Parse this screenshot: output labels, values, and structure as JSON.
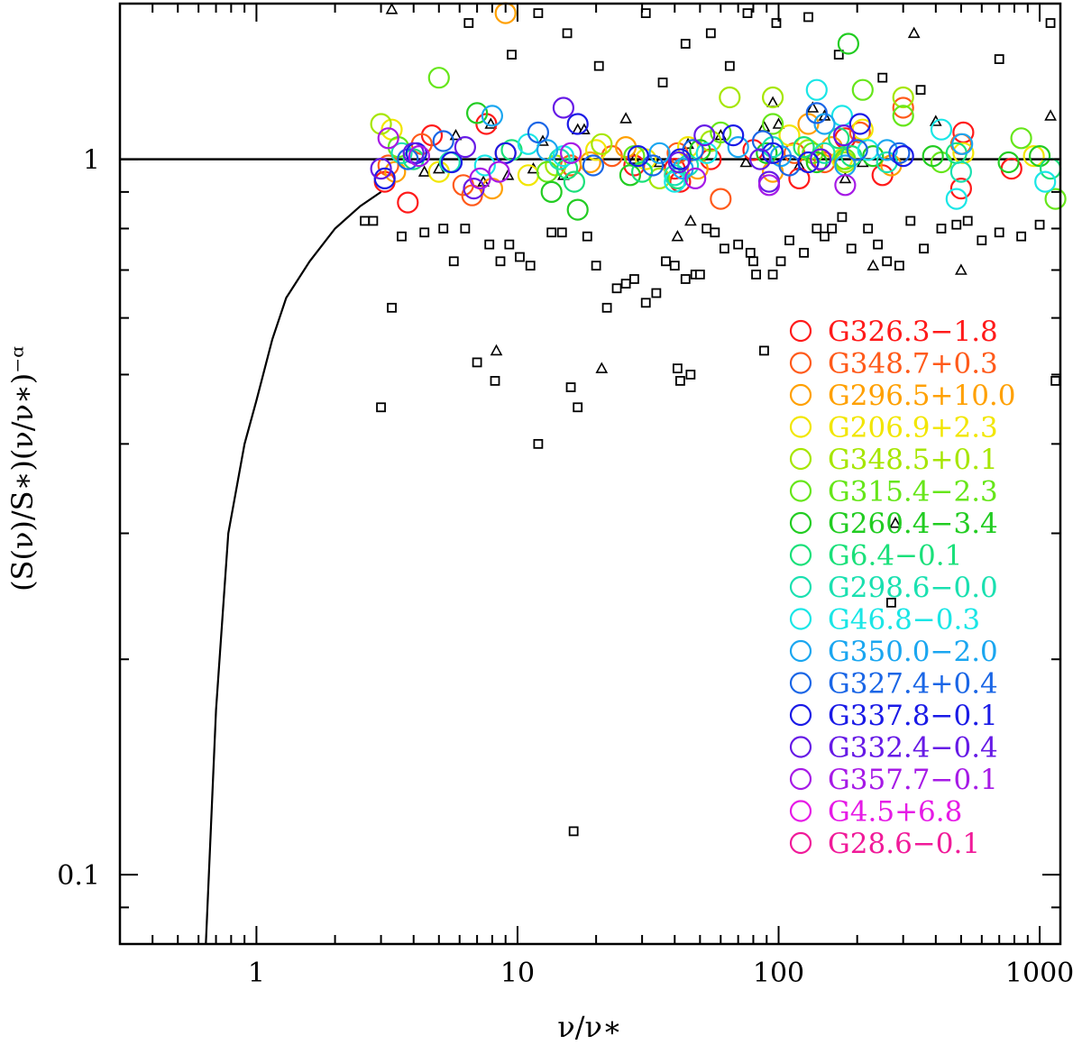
{
  "chart_data": {
    "type": "scatter",
    "xscale": "log",
    "yscale": "log",
    "xlim": [
      0.3,
      1200
    ],
    "ylim": [
      0.08,
      1.65
    ],
    "xlabel": "ν/ν∗",
    "ylabel": "(S(ν)/S∗)(ν/ν∗)⁻ᵅ",
    "xticks": [
      {
        "value": 1,
        "label": "1"
      },
      {
        "value": 10,
        "label": "10"
      },
      {
        "value": 100,
        "label": "100"
      },
      {
        "value": 1000,
        "label": "1000"
      }
    ],
    "yticks": [
      {
        "value": 0.1,
        "label": "0.1"
      },
      {
        "value": 1,
        "label": "1"
      }
    ],
    "reference_line": {
      "y": 1.0
    },
    "model_curve": {
      "x": [
        0.64,
        0.7,
        0.78,
        0.9,
        1.0,
        1.15,
        1.3,
        1.6,
        2.0,
        2.5,
        3.0
      ],
      "y": [
        0.08,
        0.17,
        0.3,
        0.4,
        0.46,
        0.56,
        0.64,
        0.72,
        0.8,
        0.86,
        0.9
      ]
    },
    "series": [
      {
        "name": "G326.3−1.8",
        "color": "#ff1a1a",
        "x": [
          3.1,
          3.8,
          4.7,
          7.6,
          9.0,
          28.0,
          40.0,
          42.0,
          55.0,
          80.0,
          120.0,
          180.0,
          250.0,
          500.0,
          510.0,
          780.0
        ],
        "y": [
          0.93,
          0.87,
          1.08,
          1.12,
          1.02,
          0.98,
          0.97,
          0.93,
          1.0,
          1.03,
          0.94,
          1.07,
          0.95,
          0.91,
          1.09,
          0.97
        ]
      },
      {
        "name": "G348.7+0.3",
        "color": "#ff5a1a",
        "x": [
          3.2,
          4.3,
          6.2,
          6.7,
          16.0,
          23.0,
          41.0,
          60.0,
          115.0,
          150.0,
          205.0,
          300.0,
          500.0
        ],
        "y": [
          0.98,
          1.05,
          0.92,
          0.89,
          0.98,
          1.01,
          1.02,
          0.88,
          1.02,
          0.99,
          1.09,
          1.18,
          1.05
        ]
      },
      {
        "name": "G296.5+10.0",
        "color": "#ffa000",
        "x": [
          3.4,
          8.0,
          9.0,
          19.0,
          26.0,
          49.0,
          95.0,
          130.0,
          160.0,
          270.0
        ],
        "y": [
          0.96,
          0.91,
          1.6,
          0.99,
          1.04,
          0.97,
          0.96,
          1.12,
          1.04,
          0.98
        ]
      },
      {
        "name": "G206.9+2.3",
        "color": "#f2e600",
        "x": [
          3.3,
          5.0,
          11.0,
          20.0,
          31.0,
          45.0,
          110.0,
          175.0,
          210.0,
          510.0,
          950.0
        ],
        "y": [
          1.1,
          0.96,
          0.95,
          1.03,
          1.0,
          1.04,
          1.08,
          1.0,
          1.1,
          1.02,
          1.01
        ]
      },
      {
        "name": "G348.5+0.1",
        "color": "#a6e600",
        "x": [
          3.0,
          14.0,
          21.0,
          35.0,
          55.0,
          65.0,
          95.0,
          130.0,
          180.0,
          300.0
        ],
        "y": [
          1.12,
          0.98,
          1.05,
          0.94,
          1.06,
          1.22,
          1.22,
          1.03,
          0.99,
          1.22
        ]
      },
      {
        "name": "G315.4−2.3",
        "color": "#66e61a",
        "x": [
          3.5,
          5.0,
          13.0,
          28.0,
          60.0,
          95.0,
          135.0,
          180.0,
          210.0,
          300.0,
          420.0,
          850.0,
          1150.0
        ],
        "y": [
          1.04,
          1.3,
          0.96,
          1.01,
          1.09,
          1.12,
          1.02,
          1.0,
          1.25,
          1.15,
          0.99,
          1.07,
          0.88
        ]
      },
      {
        "name": "G260.4−3.4",
        "color": "#22cc22",
        "x": [
          7.0,
          13.5,
          17.0,
          27.0,
          50.0,
          90.0,
          140.0,
          185.0,
          230.0,
          390.0,
          760.0,
          1000.0
        ],
        "y": [
          1.16,
          0.9,
          0.85,
          0.95,
          1.03,
          1.02,
          0.99,
          1.45,
          1.01,
          1.01,
          0.99,
          1.01
        ]
      },
      {
        "name": "G6.4−0.1",
        "color": "#1ae07a",
        "x": [
          4.0,
          9.5,
          15.5,
          16.5,
          30.0,
          41.0,
          125.0,
          170.0,
          190.0,
          480.0,
          1100.0
        ],
        "y": [
          1.0,
          1.03,
          0.97,
          0.93,
          0.96,
          0.94,
          1.04,
          1.07,
          1.01,
          1.02,
          0.97
        ]
      },
      {
        "name": "G298.6−0.0",
        "color": "#1ae0b0",
        "x": [
          3.6,
          5.5,
          14.5,
          40.0,
          45.0,
          95.0,
          150.0,
          260.0,
          500.0
        ],
        "y": [
          1.02,
          0.99,
          1.0,
          0.95,
          0.98,
          1.04,
          1.02,
          0.99,
          0.96
        ]
      },
      {
        "name": "G46.8−0.3",
        "color": "#1ae6e6",
        "x": [
          7.5,
          11.0,
          15.0,
          40.0,
          53.0,
          140.0,
          175.0,
          220.0,
          420.0,
          480.0,
          1050.0,
          1200.0
        ],
        "y": [
          0.98,
          1.05,
          1.01,
          0.93,
          1.02,
          1.25,
          1.15,
          1.03,
          1.1,
          0.88,
          0.93,
          1.13
        ]
      },
      {
        "name": "G350.0−2.0",
        "color": "#1aa6f0",
        "x": [
          8.0,
          13.0,
          35.0,
          43.0,
          70.0,
          102.0,
          150.0,
          180.0,
          260.0,
          505.0
        ],
        "y": [
          1.15,
          1.03,
          1.02,
          0.97,
          1.04,
          1.01,
          1.12,
          0.98,
          1.03,
          1.05
        ]
      },
      {
        "name": "G327.4+0.4",
        "color": "#1a66e6",
        "x": [
          3.8,
          5.2,
          12.0,
          19.5,
          33.0,
          47.0,
          87.0,
          110.0,
          140.0,
          200.0,
          290.0
        ],
        "y": [
          1.0,
          1.06,
          1.09,
          0.98,
          0.98,
          1.03,
          1.06,
          0.98,
          1.16,
          1.03,
          1.02
        ]
      },
      {
        "name": "G337.8−0.1",
        "color": "#1a1ae6",
        "x": [
          3.1,
          4.1,
          5.6,
          9.0,
          17.0,
          29.0,
          42.0,
          67.0,
          95.0,
          130.0,
          205.0,
          300.0
        ],
        "y": [
          0.94,
          1.02,
          0.99,
          1.02,
          1.12,
          1.01,
          1.0,
          1.08,
          1.02,
          0.99,
          1.12,
          1.01
        ]
      },
      {
        "name": "G332.4−0.4",
        "color": "#661ae6",
        "x": [
          3.0,
          4.0,
          6.3,
          6.8,
          15.0,
          41.5,
          52.0,
          85.0,
          92.0,
          145.0,
          178.0
        ],
        "y": [
          0.97,
          1.02,
          1.04,
          0.91,
          1.18,
          0.99,
          1.08,
          1.0,
          0.93,
          1.0,
          1.08
        ]
      },
      {
        "name": "G357.7−0.1",
        "color": "#a61ae6",
        "x": [
          3.2,
          4.2,
          7.2,
          8.5,
          16.0,
          48.0,
          92.0,
          180.0
        ],
        "y": [
          1.07,
          1.01,
          0.94,
          0.96,
          1.02,
          0.94,
          0.92,
          0.92
        ]
      },
      {
        "name": "G4.5+6.8",
        "color": "#e61ae6",
        "x": [],
        "y": []
      },
      {
        "name": "G28.6−0.1",
        "color": "#f01a99",
        "x": [],
        "y": []
      }
    ],
    "background_points": {
      "squares": {
        "x": [
          2.6,
          2.8,
          3.0,
          3.3,
          3.6,
          4.4,
          5.2,
          5.7,
          6.3,
          7.0,
          7.8,
          8.2,
          8.6,
          9.3,
          10.2,
          11.2,
          12.0,
          13.5,
          14.8,
          16.0,
          16.4,
          17.0,
          18.5,
          20.0,
          22.0,
          24.0,
          26.0,
          28.0,
          31.0,
          34.0,
          37.0,
          40.0,
          41.0,
          42.0,
          44.0,
          46.0,
          48.0,
          50.0,
          53.0,
          57.0,
          62.0,
          70.0,
          78.0,
          80.0,
          82.0,
          88.0,
          95.0,
          102.0,
          110.0,
          125.0,
          140.0,
          150.0,
          160.0,
          175.0,
          190.0,
          220.0,
          240.0,
          260.0,
          270.0,
          290.0,
          320.0,
          360.0,
          420.0,
          480.0,
          530.0,
          600.0,
          700.0,
          850.0,
          1000.0,
          1150.0,
          6.5,
          9.5,
          12.0,
          15.5,
          20.5,
          31.0,
          36.0,
          44.0,
          55.0,
          65.0,
          76.0,
          98.0,
          130.0,
          170.0,
          250.0,
          350.0,
          700.0,
          1100.0
        ],
        "y": [
          0.82,
          0.82,
          0.45,
          0.62,
          0.78,
          0.79,
          0.8,
          0.72,
          0.8,
          0.52,
          0.76,
          0.49,
          0.72,
          0.76,
          0.73,
          0.71,
          0.4,
          0.79,
          0.79,
          0.48,
          0.115,
          0.45,
          0.78,
          0.71,
          0.62,
          0.66,
          0.67,
          0.68,
          0.63,
          0.65,
          0.72,
          0.71,
          0.51,
          0.49,
          0.68,
          0.5,
          0.69,
          0.69,
          0.8,
          0.79,
          0.75,
          0.76,
          0.74,
          0.72,
          0.69,
          0.54,
          0.69,
          0.72,
          0.77,
          0.74,
          0.8,
          0.78,
          0.8,
          0.83,
          0.75,
          0.8,
          0.76,
          0.72,
          0.24,
          0.71,
          0.82,
          0.75,
          0.8,
          0.81,
          0.82,
          0.77,
          0.79,
          0.78,
          0.81,
          0.49,
          1.55,
          1.4,
          1.6,
          1.5,
          1.35,
          1.6,
          1.28,
          1.45,
          1.5,
          1.35,
          1.6,
          1.55,
          1.58,
          1.4,
          1.3,
          1.25,
          1.38,
          1.55
        ]
      },
      "triangles": {
        "x": [
          3.3,
          4.4,
          5.0,
          7.4,
          8.3,
          9.2,
          11.5,
          15.0,
          17.0,
          21.0,
          28.0,
          35.0,
          41.0,
          46.0,
          60.0,
          75.0,
          88.0,
          100.0,
          120.0,
          150.0,
          180.0,
          230.0,
          280.0,
          330.0,
          500.0,
          1100.0,
          5.8,
          7.9,
          12.5,
          18.0,
          26.0,
          45.0,
          95.0,
          135.0,
          210.0,
          400.0
        ],
        "y": [
          1.62,
          0.96,
          0.97,
          0.93,
          0.54,
          0.95,
          0.97,
          0.95,
          1.1,
          0.51,
          1.0,
          0.99,
          0.78,
          0.82,
          1.08,
          0.99,
          1.11,
          1.12,
          0.98,
          1.15,
          0.94,
          0.71,
          0.31,
          1.5,
          0.7,
          1.15,
          1.08,
          1.12,
          1.06,
          1.1,
          1.14,
          1.05,
          1.2,
          1.18,
          0.99,
          1.13
        ]
      }
    }
  }
}
